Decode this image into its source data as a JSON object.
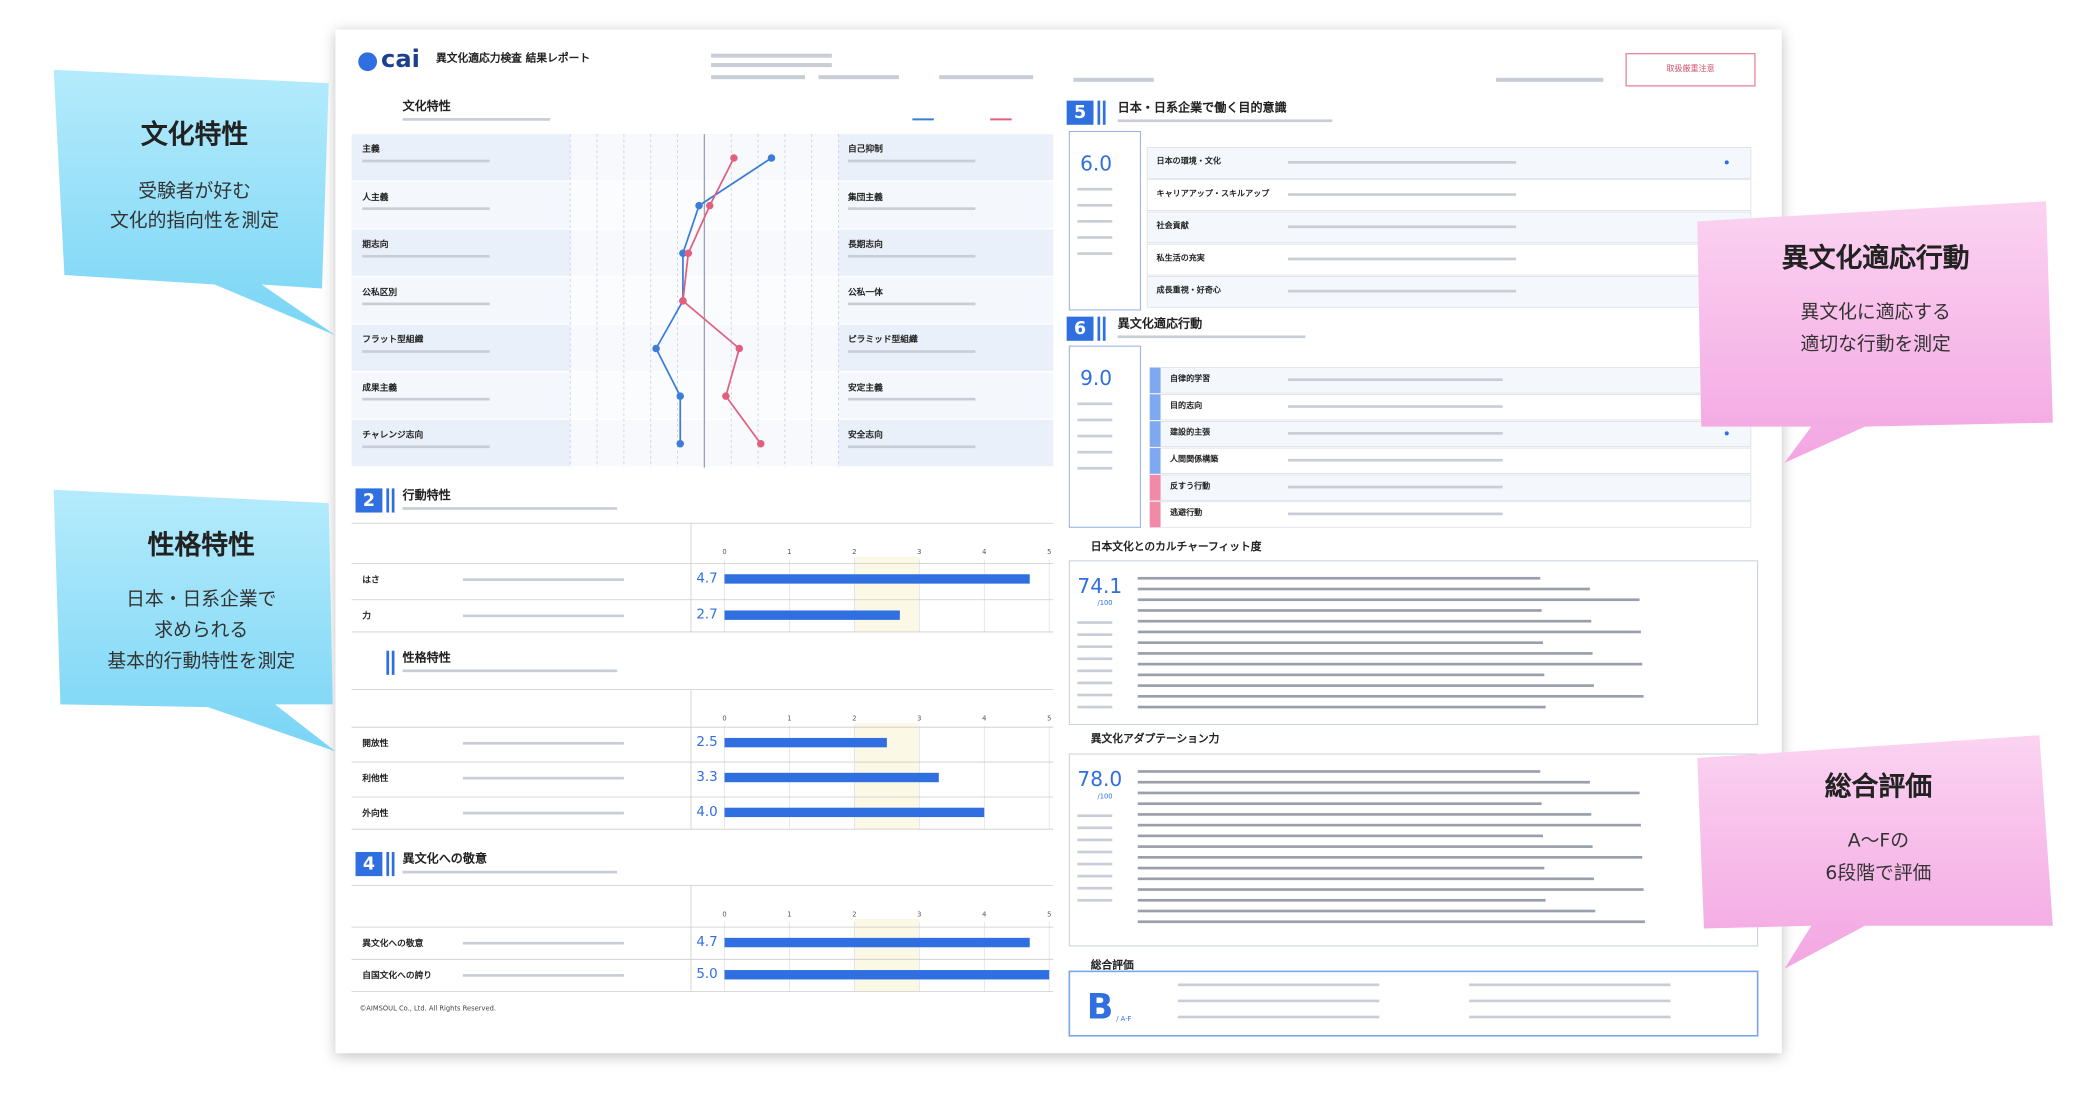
{
  "callouts": [
    {
      "title": "文化特性",
      "lines": [
        "受験者が好む",
        "文化的指向性を測定"
      ]
    },
    {
      "title": "性格特性",
      "lines": [
        "日本・日系企業で",
        "求められる",
        "基本的行動特性を測定"
      ]
    },
    {
      "title": "異文化適応行動",
      "lines": [
        "異文化に適応する",
        "適切な行動を測定"
      ]
    },
    {
      "title": "総合評価",
      "lines": [
        "A〜Fの",
        "6段階で評価"
      ]
    }
  ],
  "report": {
    "logo": "cai",
    "title": "異文化適応力検査 結果レポート",
    "notice": "取扱厳重注意",
    "culture": {
      "title": "文化特性",
      "left": [
        "主義",
        "人主義",
        "期志向",
        "公私区別",
        "フラット型組織",
        "成果主義",
        "チャレンジ志向"
      ],
      "right": [
        "自己抑制",
        "集団主義",
        "長期志向",
        "公私一体",
        "ピラミッド型組織",
        "安定主義",
        "安全志向"
      ],
      "xlim": [
        0,
        10
      ],
      "series": [
        {
          "color": "#3b7dd8",
          "values": [
            7.5,
            4.8,
            4.2,
            4.2,
            3.2,
            4.1,
            4.1
          ]
        },
        {
          "color": "#e0607e",
          "values": [
            6.1,
            5.2,
            4.4,
            4.2,
            6.3,
            5.8,
            7.1
          ]
        }
      ]
    },
    "bar_sections": [
      {
        "number": "2",
        "title": "行動特性",
        "labels": [
          "はさ",
          "力"
        ],
        "values": [
          4.7,
          2.7
        ],
        "xlim": [
          0,
          5
        ],
        "xticks": [
          0,
          1,
          2,
          3,
          4,
          5
        ],
        "color": "#2f6fe0"
      },
      {
        "title": "性格特性",
        "labels": [
          "開放性",
          "利他性",
          "外向性"
        ],
        "values": [
          2.5,
          3.3,
          4.0
        ],
        "value_labels": [
          "2.5",
          "3.3",
          "4.0"
        ],
        "xlim": [
          0,
          5
        ],
        "xticks": [
          0,
          1,
          2,
          3,
          4,
          5
        ],
        "color": "#2f6fe0"
      },
      {
        "number": "4",
        "title": "異文化への敬意",
        "labels": [
          "異文化への敬意",
          "自国文化への誇り"
        ],
        "values": [
          4.7,
          5.0
        ],
        "value_labels": [
          "4.7",
          "5.0"
        ],
        "xlim": [
          0,
          5
        ],
        "xticks": [
          0,
          1,
          2,
          3,
          4,
          5
        ],
        "color": "#2f6fe0"
      }
    ],
    "purpose": {
      "number": "5",
      "title": "日本・日系企業で働く目的意識",
      "score": "6.0",
      "rows": [
        "日本の環境・文化",
        "キャリアアップ・スキルアップ",
        "社会貢献",
        "私生活の充実",
        "成長重視・好奇心"
      ]
    },
    "adaptation": {
      "number": "6",
      "title": "異文化適応行動",
      "score": "9.0",
      "rows": [
        "自律的学習",
        "目的志向",
        "建設的主張",
        "人間関係構築",
        "反すう行動",
        "逃避行動"
      ]
    },
    "fit": {
      "title": "日本文化とのカルチャーフィット度",
      "score": "74.1",
      "scale": "/100"
    },
    "adapt_power": {
      "title": "異文化アダプテーション力",
      "score": "78.0",
      "scale": "/100"
    },
    "overall": {
      "title": "総合評価",
      "grade": "B",
      "scale": "/ A-F"
    },
    "footer": "©AIMSOUL Co., Ltd. All Rights Reserved."
  }
}
